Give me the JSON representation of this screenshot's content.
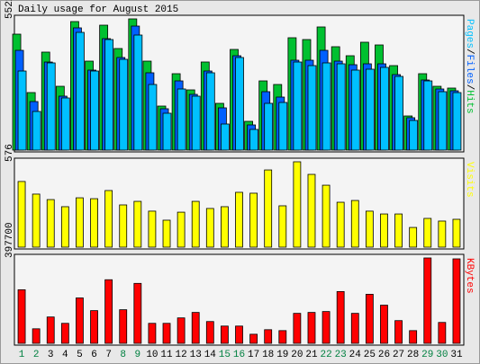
{
  "title": "Daily usage for August 2015",
  "chart_data": [
    {
      "type": "bar",
      "legend_separator": "/",
      "ylim": [
        0,
        5522
      ],
      "yticks": [
        5522
      ],
      "series": [
        {
          "name": "Hits",
          "color": "#00c030",
          "values": [
            4879,
            2421,
            4123,
            2685,
            5409,
            3744,
            5257,
            4274,
            5522,
            3744,
            1853,
            3215,
            2534,
            3707,
            1967,
            4236,
            1210,
            2912,
            2761,
            4728,
            4652,
            5182,
            4350,
            3971,
            4539,
            4425,
            3555,
            1437,
            3215,
            2685,
            2610
          ]
        },
        {
          "name": "Files",
          "color": "#0060ff",
          "values": [
            4198,
            2042,
            3706,
            2269,
            5144,
            3366,
            4690,
            3896,
            5219,
            3253,
            1740,
            2912,
            2345,
            3328,
            1778,
            3971,
            1059,
            2458,
            2231,
            3782,
            3782,
            4198,
            3744,
            3593,
            3631,
            3631,
            3177,
            1362,
            2950,
            2572,
            2496
          ]
        },
        {
          "name": "Pages",
          "color": "#00c0ff",
          "values": [
            3328,
            1626,
            3669,
            2194,
            4954,
            3328,
            4652,
            3820,
            4841,
            2761,
            1551,
            2572,
            2269,
            3253,
            1097,
            3896,
            870,
            1967,
            2004,
            3706,
            3555,
            3669,
            3631,
            3366,
            3404,
            3480,
            3101,
            1248,
            2912,
            2458,
            2420
          ]
        }
      ]
    },
    {
      "type": "bar",
      "ylim": [
        0,
        576
      ],
      "yticks": [
        576
      ],
      "series": [
        {
          "name": "Visits",
          "color": "#ffff00",
          "values": [
            443,
            358,
            321,
            273,
            333,
            327,
            382,
            285,
            309,
            243,
            182,
            236,
            309,
            261,
            273,
            370,
            364,
            521,
            279,
            576,
            491,
            418,
            303,
            315,
            243,
            224,
            224,
            133,
            194,
            176,
            188
          ]
        }
      ]
    },
    {
      "type": "bar",
      "ylim": [
        0,
        397700
      ],
      "yticks": [
        397700
      ],
      "categories": [
        "1",
        "2",
        "3",
        "4",
        "5",
        "6",
        "7",
        "8",
        "9",
        "10",
        "11",
        "12",
        "13",
        "14",
        "15",
        "16",
        "17",
        "18",
        "19",
        "20",
        "21",
        "22",
        "23",
        "24",
        "25",
        "26",
        "27",
        "28",
        "29",
        "30",
        "31"
      ],
      "category_colors": [
        "#008040",
        "#008040",
        "#000000",
        "#000000",
        "#000000",
        "#000000",
        "#000000",
        "#008040",
        "#008040",
        "#000000",
        "#000000",
        "#000000",
        "#000000",
        "#000000",
        "#008040",
        "#008040",
        "#000000",
        "#000000",
        "#000000",
        "#000000",
        "#000000",
        "#008040",
        "#008040",
        "#000000",
        "#000000",
        "#000000",
        "#000000",
        "#000000",
        "#008040",
        "#008040",
        "#000000"
      ],
      "series": [
        {
          "name": "KBytes",
          "color": "#ff0000",
          "values": [
            249600,
            67700,
            122700,
            93100,
            211500,
            152300,
            296200,
            156500,
            279200,
            93100,
            93100,
            118500,
            143900,
            101500,
            80400,
            80400,
            42300,
            63500,
            59200,
            139600,
            143900,
            148100,
            241200,
            139600,
            228500,
            177700,
            105800,
            59200,
            397700,
            97300,
            393500
          ]
        }
      ]
    }
  ]
}
